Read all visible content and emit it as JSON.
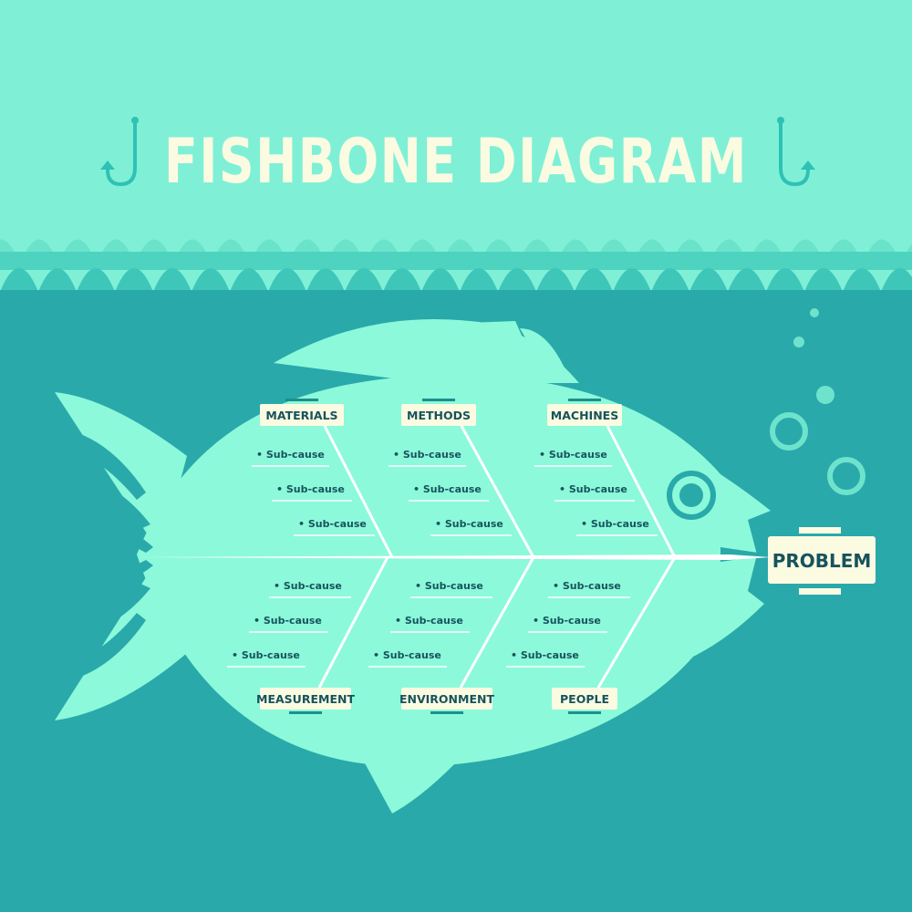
{
  "title": "FISHBONE DIAGRAM",
  "problem": "PROBLEM",
  "categories": {
    "top": [
      "MATERIALS",
      "METHODS",
      "MACHINES"
    ],
    "bottom": [
      "MEASUREMENT",
      "ENVIRONMENT",
      "PEOPLE"
    ]
  },
  "sub_cause_label": "Sub-cause",
  "sub_causes_per_category": 3,
  "colors": {
    "sky": "#7ff0d6",
    "water": "#2aa9ab",
    "fish": "#8cf9da",
    "title": "#fbfbe2",
    "label_box": "#fbfbe2",
    "label_text": "#17535d",
    "bones": "#ffffff"
  },
  "icons": [
    "fish-hook-icon",
    "fish-hook-icon",
    "bubble-icon"
  ]
}
